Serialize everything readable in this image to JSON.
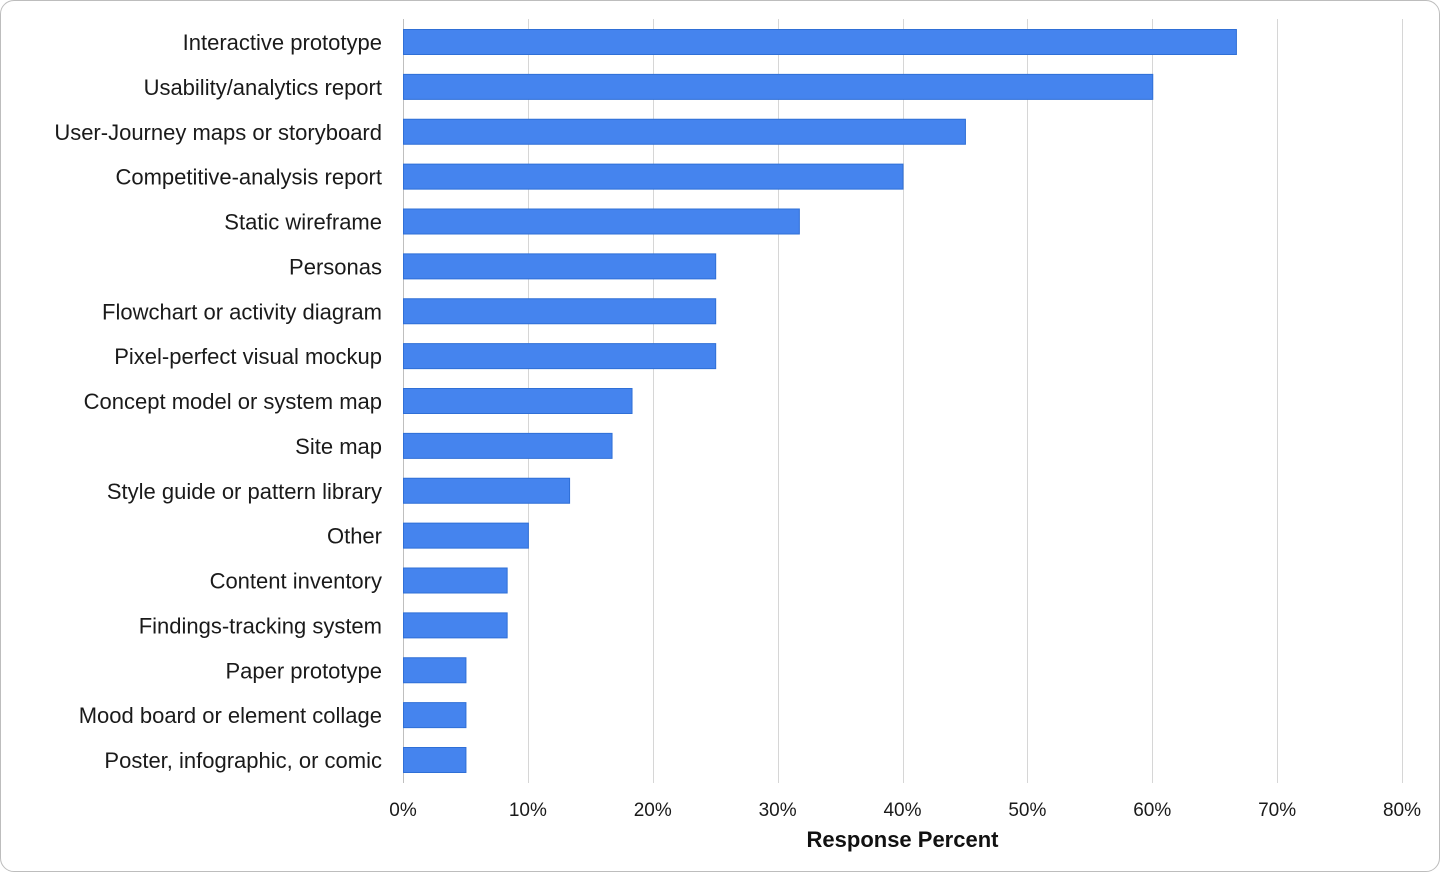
{
  "chart_data": {
    "type": "bar",
    "orientation": "horizontal",
    "categories": [
      "Interactive prototype",
      "Usability/analytics report",
      "User-Journey maps or storyboard",
      "Competitive-analysis report",
      "Static wireframe",
      "Personas",
      "Flowchart or activity diagram",
      "Pixel-perfect visual mockup",
      "Concept model or system map",
      "Site map",
      "Style guide or pattern library",
      "Other",
      "Content inventory",
      "Findings-tracking system",
      "Paper prototype",
      "Mood board or element collage",
      "Poster, infographic, or comic"
    ],
    "values": [
      66.7,
      60.0,
      45.0,
      40.0,
      31.7,
      25.0,
      25.0,
      25.0,
      18.3,
      16.7,
      13.3,
      10.0,
      8.3,
      8.3,
      5.0,
      5.0,
      5.0
    ],
    "xlabel": "Response Percent",
    "ylabel": "",
    "title": "",
    "xlim": [
      0,
      80
    ],
    "xticks": [
      "0%",
      "10%",
      "20%",
      "30%",
      "40%",
      "50%",
      "60%",
      "70%",
      "80%"
    ],
    "grid": true,
    "legend": "none",
    "bar_color": "#4584ee"
  }
}
